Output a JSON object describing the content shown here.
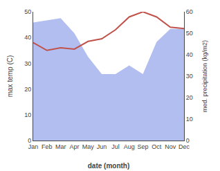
{
  "chart_data": {
    "type": "line",
    "xlabel": "date (month)",
    "ylabel": "max temp (C)",
    "y2label": "med. precipitation (kg/m2)",
    "categories": [
      "Jan",
      "Feb",
      "Mar",
      "Apr",
      "May",
      "Jun",
      "Jul",
      "Aug",
      "Sep",
      "Oct",
      "Nov",
      "Dec"
    ],
    "series": [
      {
        "type": "area",
        "color": "#b3bef0",
        "axis": "y2",
        "values": [
          55,
          56,
          57,
          50,
          39,
          31,
          31,
          35,
          31,
          46,
          52,
          52
        ]
      },
      {
        "type": "line",
        "color": "#c0524a",
        "values": [
          38,
          35,
          36,
          35.5,
          38.5,
          39.5,
          43,
          48,
          50,
          48,
          44,
          43.5
        ]
      }
    ],
    "ylim": [
      0,
      50
    ],
    "yticks": [
      0,
      10,
      20,
      30,
      40,
      50
    ],
    "y2lim": [
      0,
      60
    ],
    "y2ticks": [
      0,
      10,
      20,
      30,
      40,
      50,
      60
    ],
    "grid": false
  }
}
